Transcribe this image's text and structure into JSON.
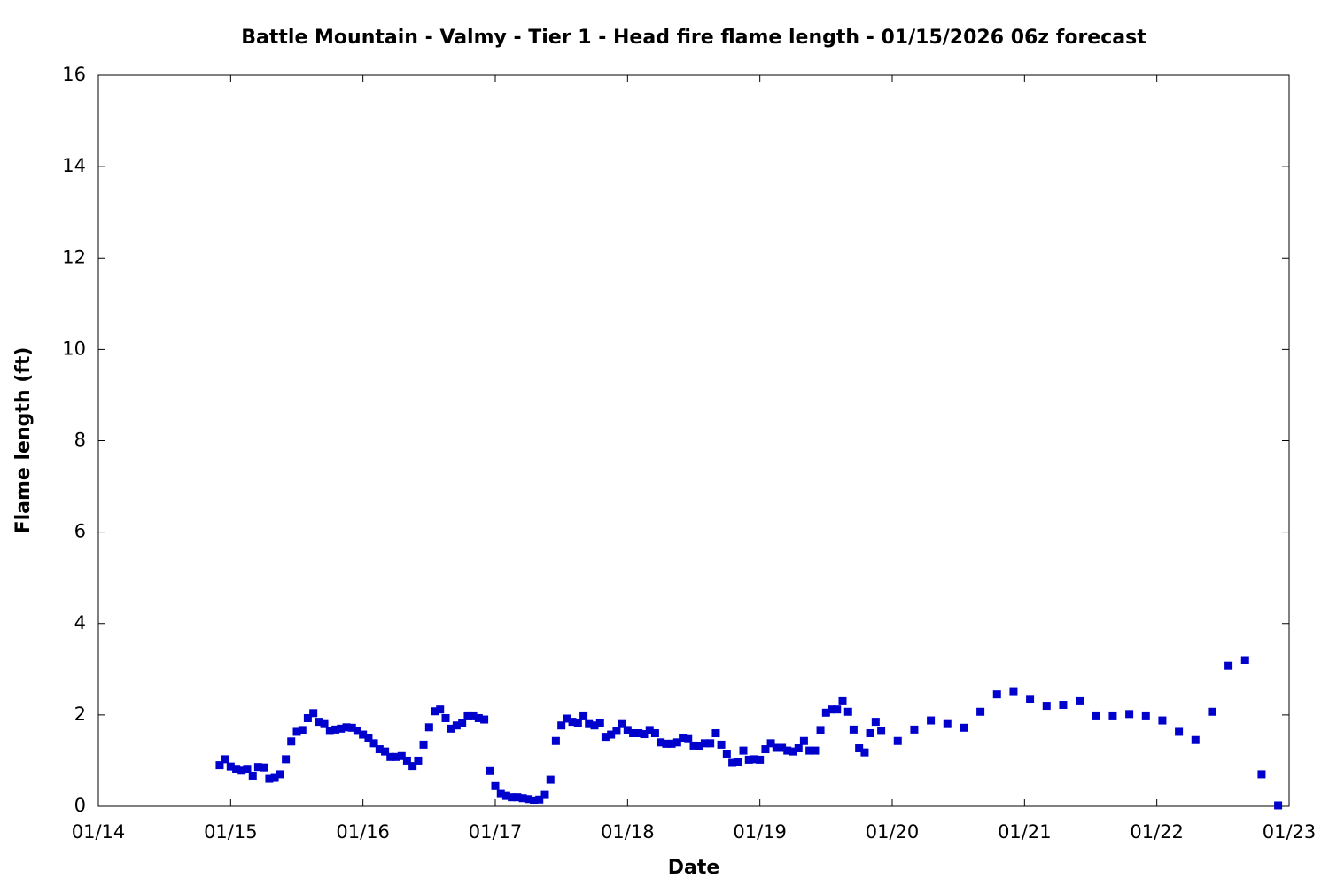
{
  "chart_data": {
    "type": "scatter",
    "title": "Battle Mountain - Valmy - Tier 1 - Head fire flame length - 01/15/2026 06z forecast",
    "xlabel": "Date",
    "ylabel": "Flame length (ft)",
    "color": "#0000cc",
    "xlim": [
      14,
      23
    ],
    "xticks": [
      {
        "value": 14,
        "label": "01/14"
      },
      {
        "value": 15,
        "label": "01/15"
      },
      {
        "value": 16,
        "label": "01/16"
      },
      {
        "value": 17,
        "label": "01/17"
      },
      {
        "value": 18,
        "label": "01/18"
      },
      {
        "value": 19,
        "label": "01/19"
      },
      {
        "value": 20,
        "label": "01/20"
      },
      {
        "value": 21,
        "label": "01/21"
      },
      {
        "value": 22,
        "label": "01/22"
      },
      {
        "value": 23,
        "label": "01/23"
      }
    ],
    "ylim": [
      0,
      16
    ],
    "yticks": [
      0,
      2,
      4,
      6,
      8,
      10,
      12,
      14,
      16
    ],
    "x": [
      14.917,
      14.958,
      15,
      15.042,
      15.083,
      15.125,
      15.167,
      15.208,
      15.25,
      15.292,
      15.333,
      15.375,
      15.417,
      15.458,
      15.5,
      15.542,
      15.583,
      15.625,
      15.667,
      15.708,
      15.75,
      15.792,
      15.833,
      15.875,
      15.917,
      15.958,
      16,
      16.042,
      16.083,
      16.125,
      16.167,
      16.208,
      16.25,
      16.292,
      16.333,
      16.375,
      16.417,
      16.458,
      16.5,
      16.542,
      16.583,
      16.625,
      16.667,
      16.708,
      16.75,
      16.792,
      16.833,
      16.875,
      16.917,
      16.958,
      17,
      17.042,
      17.083,
      17.125,
      17.167,
      17.208,
      17.25,
      17.292,
      17.333,
      17.375,
      17.417,
      17.458,
      17.5,
      17.542,
      17.583,
      17.625,
      17.667,
      17.708,
      17.75,
      17.792,
      17.833,
      17.875,
      17.917,
      17.958,
      18,
      18.042,
      18.083,
      18.125,
      18.167,
      18.208,
      18.25,
      18.292,
      18.333,
      18.375,
      18.417,
      18.458,
      18.5,
      18.542,
      18.583,
      18.625,
      18.667,
      18.708,
      18.75,
      18.792,
      18.833,
      18.875,
      18.917,
      18.958,
      19,
      19.042,
      19.083,
      19.125,
      19.167,
      19.208,
      19.25,
      19.292,
      19.333,
      19.375,
      19.417,
      19.458,
      19.5,
      19.542,
      19.583,
      19.625,
      19.667,
      19.708,
      19.75,
      19.792,
      19.833,
      19.875,
      19.917,
      20.042,
      20.167,
      20.292,
      20.417,
      20.542,
      20.667,
      20.792,
      20.917,
      21.042,
      21.167,
      21.292,
      21.417,
      21.542,
      21.667,
      21.792,
      21.917,
      22.042,
      22.167,
      22.292,
      22.417,
      22.542,
      22.667,
      22.792,
      22.917
    ],
    "values": [
      0.9,
      1.03,
      0.87,
      0.82,
      0.78,
      0.82,
      0.67,
      0.86,
      0.85,
      0.6,
      0.62,
      0.7,
      1.03,
      1.42,
      1.63,
      1.67,
      1.93,
      2.04,
      1.85,
      1.8,
      1.65,
      1.68,
      1.7,
      1.73,
      1.72,
      1.65,
      1.57,
      1.5,
      1.38,
      1.25,
      1.2,
      1.08,
      1.08,
      1.1,
      1.0,
      0.88,
      1.0,
      1.35,
      1.73,
      2.08,
      2.12,
      1.93,
      1.7,
      1.77,
      1.83,
      1.97,
      1.97,
      1.93,
      1.9,
      0.77,
      0.44,
      0.27,
      0.23,
      0.2,
      0.2,
      0.18,
      0.16,
      0.13,
      0.15,
      0.25,
      0.58,
      1.43,
      1.77,
      1.92,
      1.85,
      1.82,
      1.97,
      1.8,
      1.77,
      1.82,
      1.52,
      1.57,
      1.65,
      1.8,
      1.67,
      1.6,
      1.6,
      1.58,
      1.67,
      1.6,
      1.4,
      1.37,
      1.37,
      1.4,
      1.5,
      1.47,
      1.33,
      1.32,
      1.38,
      1.38,
      1.6,
      1.35,
      1.15,
      0.95,
      0.97,
      1.22,
      1.02,
      1.03,
      1.02,
      1.25,
      1.38,
      1.28,
      1.28,
      1.22,
      1.2,
      1.27,
      1.43,
      1.22,
      1.22,
      1.67,
      2.05,
      2.12,
      2.12,
      2.3,
      2.07,
      1.68,
      1.27,
      1.18,
      1.6,
      1.85,
      1.65,
      1.43,
      1.68,
      1.88,
      1.8,
      1.72,
      2.07,
      2.45,
      2.52,
      2.35,
      2.2,
      2.22,
      2.3,
      1.97,
      1.97,
      2.02,
      1.97,
      1.88,
      1.63,
      1.45,
      2.07,
      3.08,
      3.2,
      0.7,
      0.02
    ]
  }
}
